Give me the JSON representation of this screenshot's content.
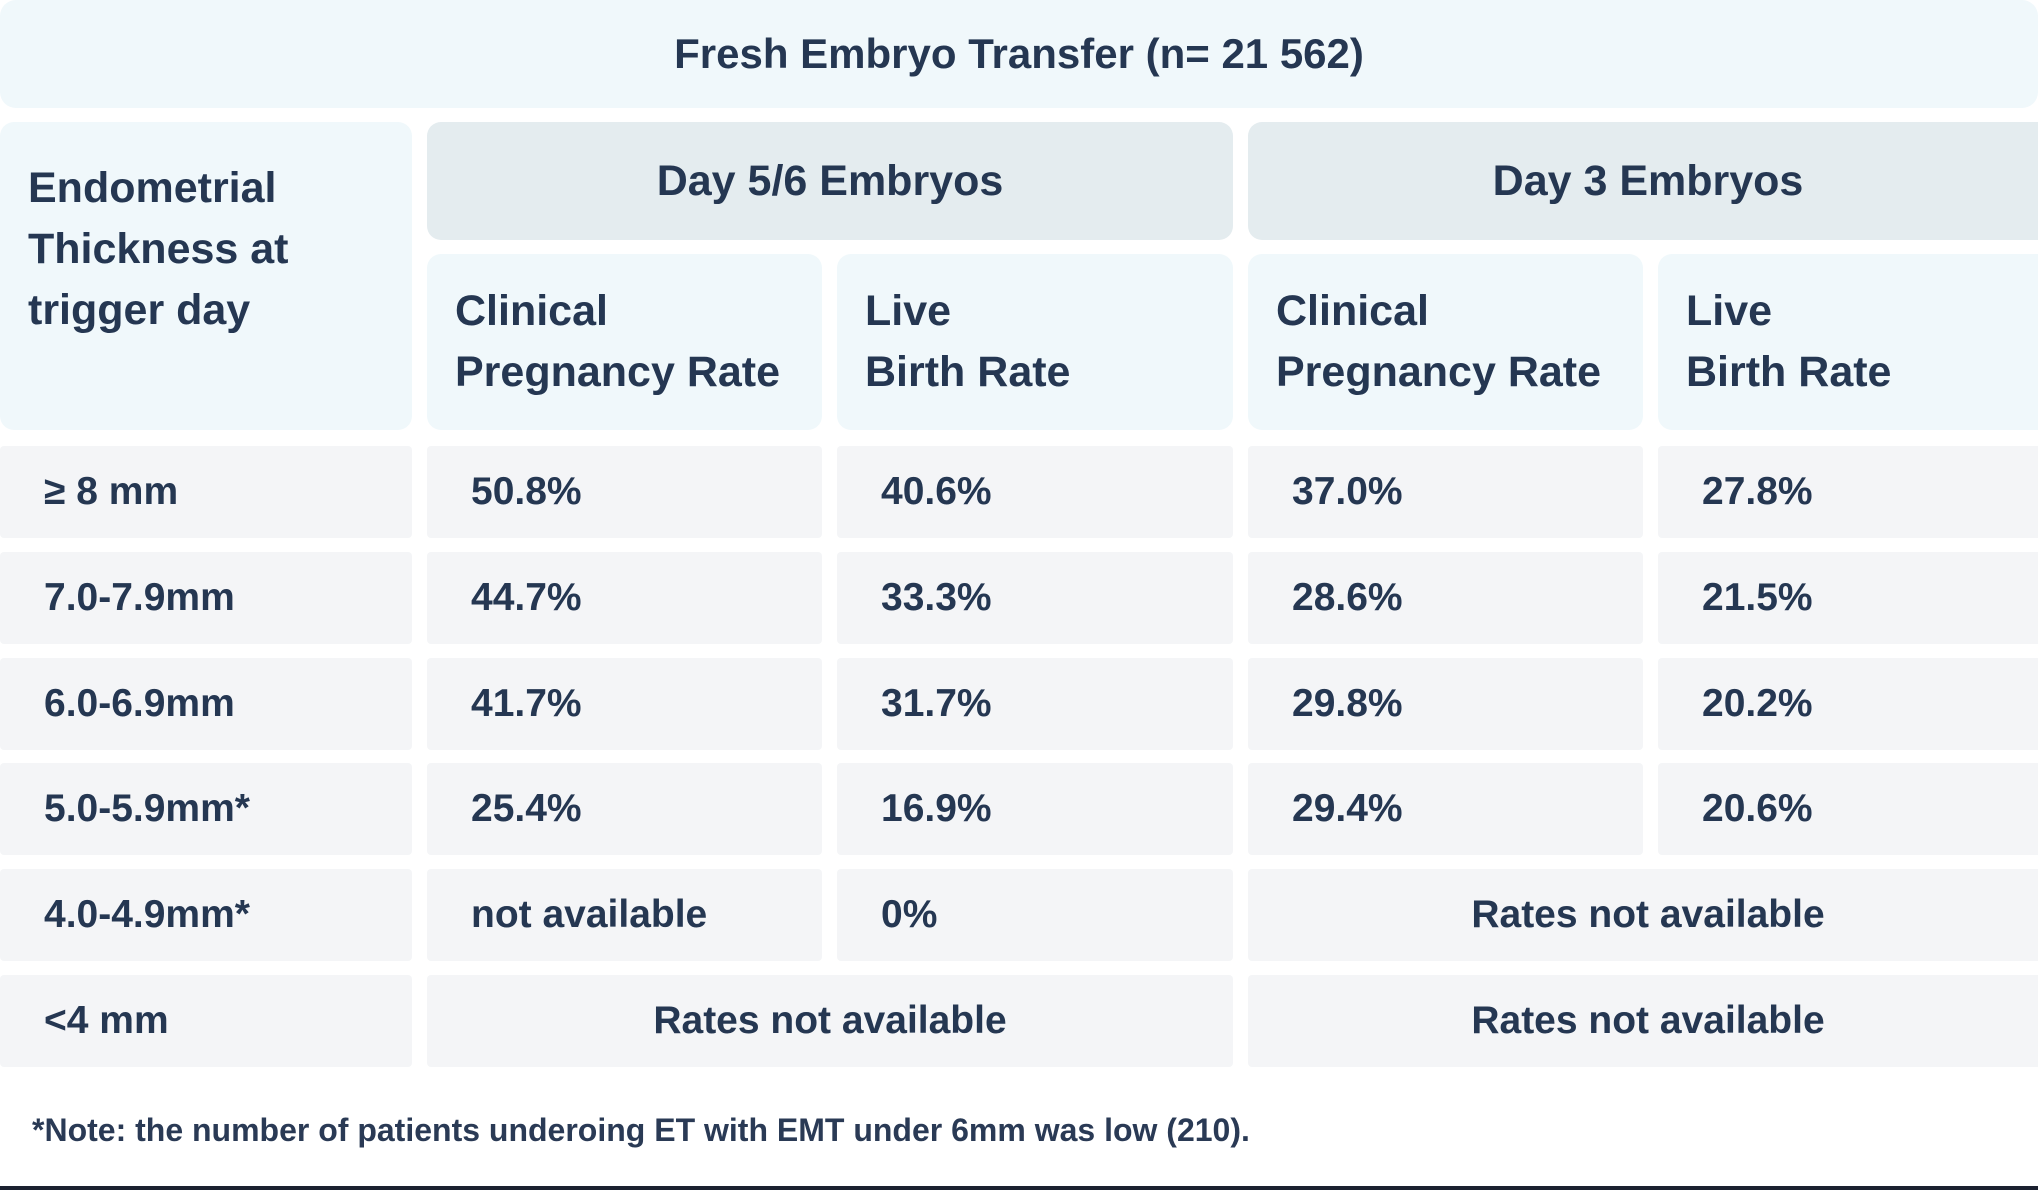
{
  "title": "Fresh Embryo Transfer (n= 21 562)",
  "stub_header": [
    "Endometrial",
    "Thickness at",
    "trigger day"
  ],
  "groups": [
    "Day 5/6 Embryos",
    "Day 3 Embryos"
  ],
  "sub_headers": {
    "cpr": [
      "Clinical",
      "Pregnancy Rate"
    ],
    "lbr": [
      "Live",
      "Birth Rate"
    ]
  },
  "rows": [
    {
      "label": "≥ 8 mm",
      "d56_cpr": "50.8%",
      "d56_lbr": "40.6%",
      "d3_cpr": "37.0%",
      "d3_lbr": "27.8%"
    },
    {
      "label": "7.0-7.9mm",
      "d56_cpr": "44.7%",
      "d56_lbr": "33.3%",
      "d3_cpr": "28.6%",
      "d3_lbr": "21.5%"
    },
    {
      "label": "6.0-6.9mm",
      "d56_cpr": "41.7%",
      "d56_lbr": "31.7%",
      "d3_cpr": "29.8%",
      "d3_lbr": "20.2%"
    },
    {
      "label": "5.0-5.9mm*",
      "d56_cpr": "25.4%",
      "d56_lbr": "16.9%",
      "d3_cpr": "29.4%",
      "d3_lbr": "20.6%"
    },
    {
      "label": "4.0-4.9mm*",
      "d56_cpr": "not available",
      "d56_lbr": "0%",
      "d3_merged": "Rates not available"
    },
    {
      "label": "<4 mm",
      "d56_merged": "Rates not available",
      "d3_merged": "Rates not available"
    }
  ],
  "footnote": "*Note: the number of patients underoing ET with EMT under 6mm was low (210)."
}
